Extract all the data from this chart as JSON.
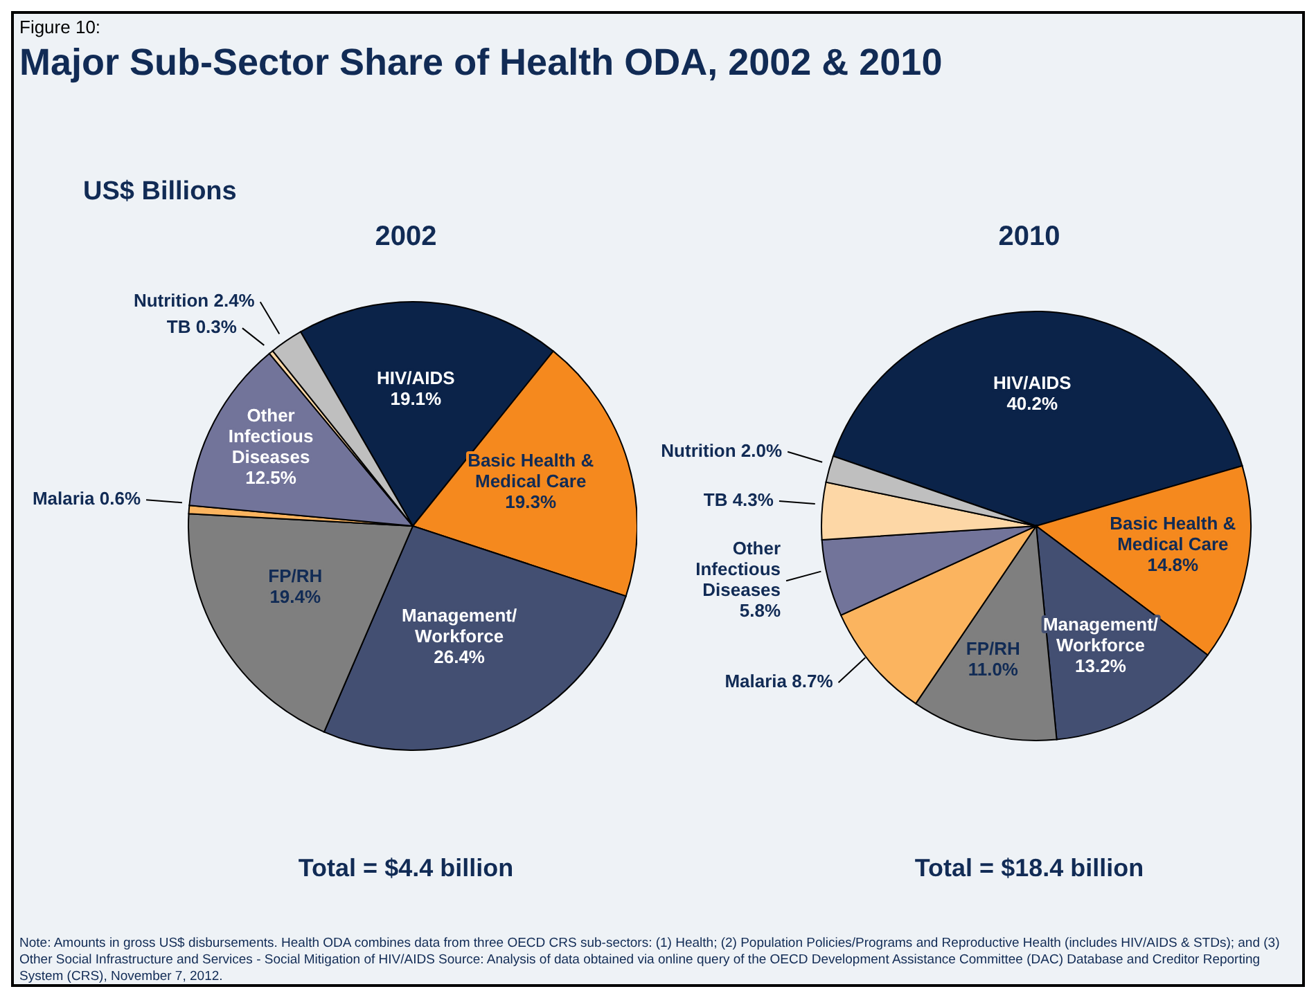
{
  "chart_data": [
    {
      "type": "other",
      "title": "Major Sub-Sector Share of Health ODA, 2002 & 2010",
      "annotations": [
        "Figure 10:",
        "US$ Billions",
        "Note: Amounts in gross US$ disbursements. Health ODA combines data from three OECD CRS sub-sectors: (1) Health; (2) Population Policies/Programs and Reproductive Health (includes HIV/AIDS & STDs); and (3) Other Social Infrastructure and Services - Social Mitigation of HIV/AIDS Source: Analysis of data obtained via online query of the OECD Development Assistance Committee (DAC) Database and Creditor Reporting System (CRS), November 7, 2012."
      ]
    },
    {
      "type": "pie",
      "title": "2002",
      "xlabel": "Total = $4.4 billion",
      "categories": [
        "HIV/AIDS",
        "Basic Health & Medical Care",
        "Management/ Workforce",
        "FP/RH",
        "Malaria",
        "Other Infectious Diseases",
        "TB",
        "Nutrition"
      ],
      "values": [
        19.1,
        19.3,
        26.4,
        19.4,
        0.6,
        12.5,
        0.3,
        2.4
      ],
      "value_labels": [
        "19.1%",
        "19.3%",
        "26.4%",
        "19.4%",
        "0.6%",
        "12.5%",
        "0.3%",
        "2.4%"
      ],
      "colors": [
        "#0b2349",
        "#f5891e",
        "#434f72",
        "#7f7f7f",
        "#fbb45f",
        "#72749a",
        "#fdd7a6",
        "#bfbfbf"
      ]
    },
    {
      "type": "pie",
      "title": "2010",
      "xlabel": "Total = $18.4 billion",
      "categories": [
        "HIV/AIDS",
        "Basic Health & Medical Care",
        "Management/ Workforce",
        "FP/RH",
        "Malaria",
        "Other Infectious Diseases",
        "TB",
        "Nutrition"
      ],
      "values": [
        40.2,
        14.8,
        13.2,
        11.0,
        8.7,
        5.8,
        4.3,
        2.0
      ],
      "value_labels": [
        "40.2%",
        "14.8%",
        "13.2%",
        "11.0%",
        "8.7%",
        "5.8%",
        "4.3%",
        "2.0%"
      ],
      "colors": [
        "#0b2349",
        "#f5891e",
        "#434f72",
        "#7f7f7f",
        "#fbb45f",
        "#72749a",
        "#fdd7a6",
        "#bfbfbf"
      ]
    }
  ]
}
